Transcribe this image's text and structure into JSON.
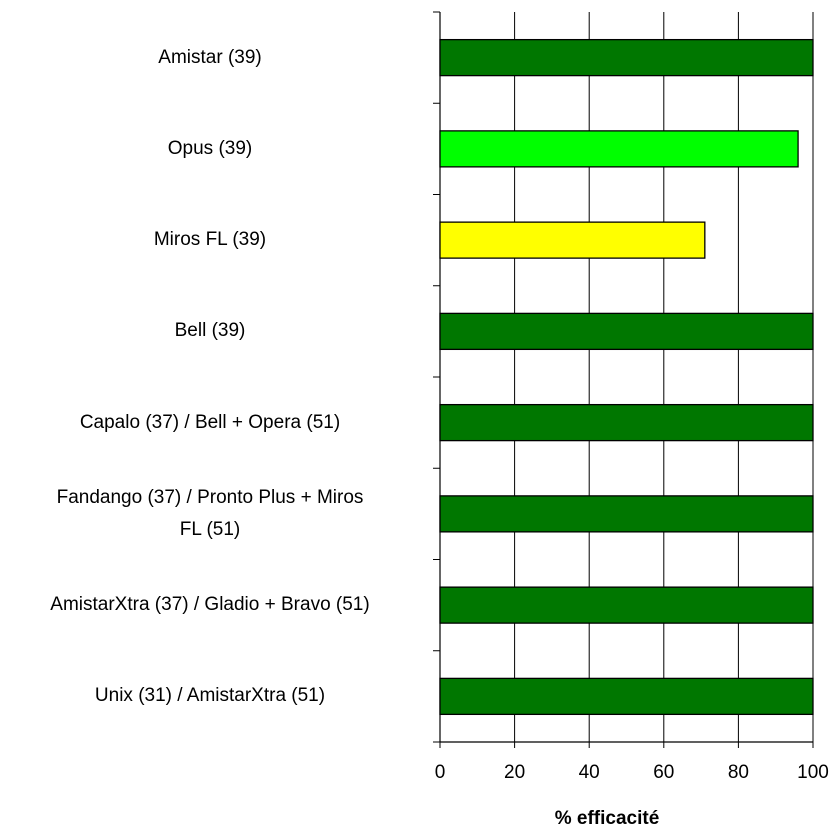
{
  "chart_data": {
    "type": "bar",
    "orientation": "horizontal",
    "categories": [
      "Amistar (39)",
      "Opus (39)",
      "Miros FL (39)",
      "Bell (39)",
      "Capalo (37) / Bell + Opera (51)",
      "Fandango (37) /  Pronto Plus + Miros FL (51)",
      "AmistarXtra (37) / Gladio + Bravo (51)",
      "Unix (31) / AmistarXtra (51)"
    ],
    "values": [
      100,
      96,
      71,
      100,
      100,
      100,
      100,
      100
    ],
    "bar_colors": [
      "#007700",
      "#00ff00",
      "#ffff00",
      "#007700",
      "#007700",
      "#007700",
      "#007700",
      "#007700"
    ],
    "xlabel": "% efficacité",
    "ylabel": "",
    "xlim": [
      0,
      100
    ],
    "xticks": [
      0,
      20,
      40,
      60,
      80,
      100
    ],
    "grid": "vertical",
    "legend": "none"
  }
}
